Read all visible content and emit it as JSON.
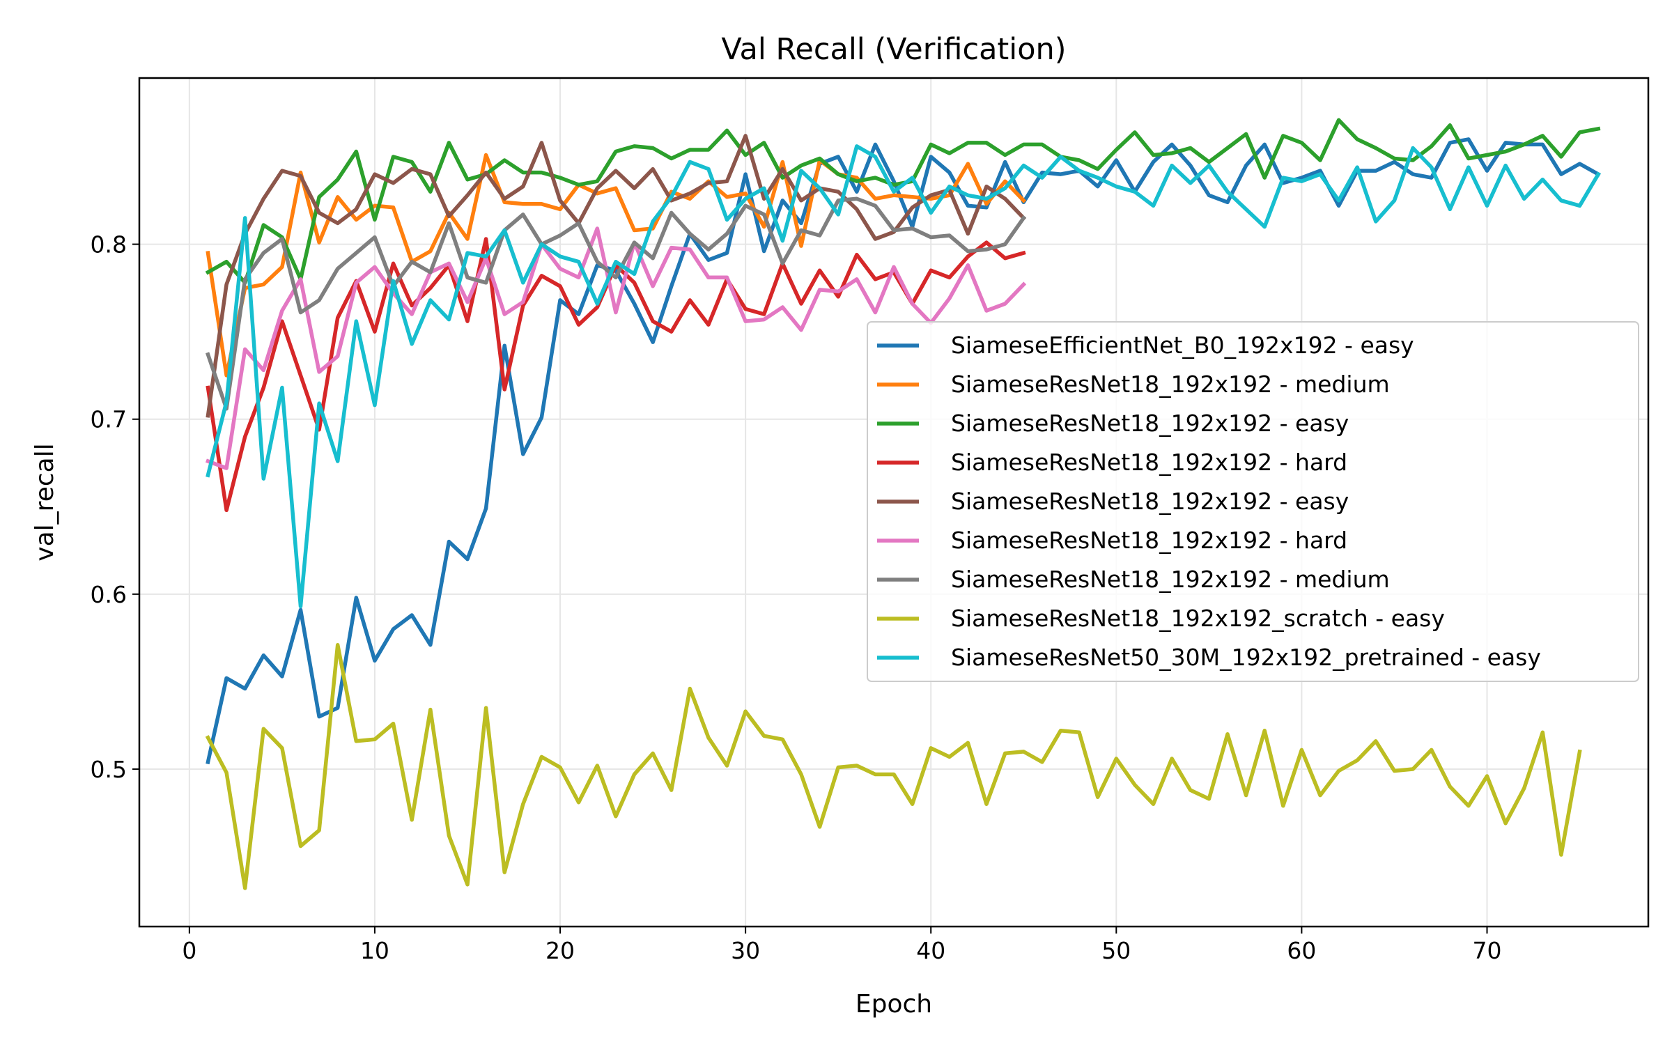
{
  "chart_data": {
    "type": "line",
    "title": "Val Recall (Verification)",
    "xlabel": "Epoch",
    "ylabel": "val_recall",
    "xlim": [
      -2.7,
      78.7
    ],
    "ylim": [
      0.41,
      0.895
    ],
    "xticks": [
      0,
      10,
      20,
      30,
      40,
      50,
      60,
      70
    ],
    "yticks": [
      0.5,
      0.6,
      0.7,
      0.8
    ],
    "grid": true,
    "legend_position": "center-right",
    "series": [
      {
        "name": "SiameseEfficientNet_B0_192x192 - easy",
        "color": "#1f77b4",
        "x_start": 1,
        "values": [
          0.504,
          0.552,
          0.546,
          0.565,
          0.553,
          0.591,
          0.53,
          0.535,
          0.598,
          0.562,
          0.58,
          0.588,
          0.571,
          0.63,
          0.62,
          0.649,
          0.742,
          0.68,
          0.701,
          0.768,
          0.76,
          0.788,
          0.785,
          0.766,
          0.744,
          0.776,
          0.806,
          0.791,
          0.795,
          0.84,
          0.796,
          0.825,
          0.812,
          0.846,
          0.85,
          0.83,
          0.857,
          0.836,
          0.81,
          0.85,
          0.841,
          0.822,
          0.821,
          0.847,
          0.824,
          0.841,
          0.84,
          0.842,
          0.833,
          0.848,
          0.83,
          0.847,
          0.857,
          0.845,
          0.828,
          0.824,
          0.845,
          0.857,
          0.835,
          0.838,
          0.842,
          0.822,
          0.842,
          0.842,
          0.847,
          0.84,
          0.838,
          0.858,
          0.86,
          0.842,
          0.858,
          0.857,
          0.857,
          0.84,
          0.846,
          0.84
        ]
      },
      {
        "name": "SiameseResNet18_192x192 - medium",
        "color": "#ff7f0e",
        "x_start": 1,
        "values": [
          0.795,
          0.725,
          0.775,
          0.777,
          0.787,
          0.841,
          0.801,
          0.827,
          0.814,
          0.822,
          0.821,
          0.79,
          0.796,
          0.818,
          0.803,
          0.851,
          0.824,
          0.823,
          0.823,
          0.82,
          0.834,
          0.829,
          0.832,
          0.808,
          0.809,
          0.83,
          0.826,
          0.836,
          0.827,
          0.829,
          0.81,
          0.847,
          0.799,
          0.848,
          0.84,
          0.838,
          0.826,
          0.828,
          0.827,
          0.826,
          0.828,
          0.846,
          0.823,
          0.836,
          0.825
        ]
      },
      {
        "name": "SiameseResNet18_192x192 - easy",
        "color": "#2ca02c",
        "x_start": 1,
        "values": [
          0.784,
          0.79,
          0.778,
          0.811,
          0.804,
          0.78,
          0.827,
          0.837,
          0.853,
          0.814,
          0.85,
          0.847,
          0.83,
          0.858,
          0.837,
          0.84,
          0.848,
          0.841,
          0.841,
          0.838,
          0.834,
          0.836,
          0.853,
          0.856,
          0.855,
          0.849,
          0.854,
          0.854,
          0.865,
          0.851,
          0.858,
          0.838,
          0.845,
          0.849,
          0.84,
          0.836,
          0.838,
          0.834,
          0.836,
          0.857,
          0.852,
          0.858,
          0.858,
          0.851,
          0.857,
          0.857,
          0.85,
          0.848,
          0.843,
          0.854,
          0.864,
          0.851,
          0.852,
          0.855,
          0.847,
          0.855,
          0.863,
          0.838,
          0.862,
          0.858,
          0.848,
          0.871,
          0.86,
          0.855,
          0.849,
          0.848,
          0.856,
          0.868,
          0.849,
          0.851,
          0.853,
          0.857,
          0.862,
          0.85,
          0.864,
          0.866
        ]
      },
      {
        "name": "SiameseResNet18_192x192 - hard",
        "color": "#d62728",
        "x_start": 1,
        "values": [
          0.718,
          0.648,
          0.69,
          0.718,
          0.756,
          0.725,
          0.694,
          0.758,
          0.779,
          0.75,
          0.789,
          0.765,
          0.775,
          0.788,
          0.756,
          0.803,
          0.717,
          0.765,
          0.782,
          0.776,
          0.754,
          0.764,
          0.788,
          0.778,
          0.756,
          0.75,
          0.768,
          0.754,
          0.78,
          0.763,
          0.76,
          0.789,
          0.766,
          0.785,
          0.77,
          0.794,
          0.78,
          0.784,
          0.766,
          0.785,
          0.781,
          0.793,
          0.801,
          0.792,
          0.795
        ]
      },
      {
        "name": "SiameseResNet18_192x192 - easy",
        "color": "#8c564b",
        "x_start": 1,
        "values": [
          0.702,
          0.777,
          0.806,
          0.826,
          0.842,
          0.839,
          0.818,
          0.812,
          0.82,
          0.84,
          0.835,
          0.843,
          0.84,
          0.816,
          0.828,
          0.841,
          0.826,
          0.833,
          0.858,
          0.825,
          0.812,
          0.832,
          0.842,
          0.832,
          0.843,
          0.825,
          0.829,
          0.835,
          0.836,
          0.862,
          0.826,
          0.843,
          0.825,
          0.832,
          0.83,
          0.82,
          0.803,
          0.807,
          0.821,
          0.828,
          0.831,
          0.806,
          0.833,
          0.826,
          0.815
        ]
      },
      {
        "name": "SiameseResNet18_192x192 - hard",
        "color": "#e377c2",
        "x_start": 1,
        "values": [
          0.676,
          0.672,
          0.74,
          0.728,
          0.762,
          0.78,
          0.727,
          0.736,
          0.778,
          0.787,
          0.772,
          0.76,
          0.784,
          0.789,
          0.767,
          0.792,
          0.76,
          0.767,
          0.8,
          0.786,
          0.781,
          0.809,
          0.761,
          0.801,
          0.776,
          0.798,
          0.797,
          0.781,
          0.781,
          0.756,
          0.757,
          0.764,
          0.751,
          0.774,
          0.773,
          0.78,
          0.761,
          0.787,
          0.766,
          0.755,
          0.769,
          0.788,
          0.762,
          0.766,
          0.777
        ]
      },
      {
        "name": "SiameseResNet18_192x192 - medium",
        "color": "#7f7f7f",
        "x_start": 1,
        "values": [
          0.737,
          0.706,
          0.78,
          0.795,
          0.803,
          0.761,
          0.768,
          0.786,
          0.795,
          0.804,
          0.776,
          0.79,
          0.784,
          0.812,
          0.781,
          0.778,
          0.808,
          0.817,
          0.8,
          0.805,
          0.812,
          0.79,
          0.781,
          0.801,
          0.792,
          0.818,
          0.806,
          0.797,
          0.806,
          0.822,
          0.817,
          0.789,
          0.808,
          0.805,
          0.825,
          0.826,
          0.822,
          0.808,
          0.809,
          0.804,
          0.805,
          0.796,
          0.797,
          0.8,
          0.815
        ]
      },
      {
        "name": "SiameseResNet18_192x192_scratch - easy",
        "color": "#bcbd22",
        "x_start": 1,
        "values": [
          0.518,
          0.498,
          0.432,
          0.523,
          0.512,
          0.456,
          0.465,
          0.571,
          0.516,
          0.517,
          0.526,
          0.471,
          0.534,
          0.462,
          0.434,
          0.535,
          0.441,
          0.48,
          0.507,
          0.501,
          0.481,
          0.502,
          0.473,
          0.497,
          0.509,
          0.488,
          0.546,
          0.518,
          0.502,
          0.533,
          0.519,
          0.517,
          0.497,
          0.467,
          0.501,
          0.502,
          0.497,
          0.497,
          0.48,
          0.512,
          0.507,
          0.515,
          0.48,
          0.509,
          0.51,
          0.504,
          0.522,
          0.521,
          0.484,
          0.506,
          0.491,
          0.48,
          0.506,
          0.488,
          0.483,
          0.52,
          0.485,
          0.522,
          0.479,
          0.511,
          0.485,
          0.499,
          0.505,
          0.516,
          0.499,
          0.5,
          0.511,
          0.49,
          0.479,
          0.496,
          0.469,
          0.489,
          0.521,
          0.451,
          0.51
        ]
      },
      {
        "name": "SiameseResNet50_30M_192x192_pretrained - easy",
        "color": "#17becf",
        "x_start": 1,
        "values": [
          0.668,
          0.71,
          0.815,
          0.666,
          0.718,
          0.593,
          0.709,
          0.676,
          0.756,
          0.708,
          0.779,
          0.743,
          0.768,
          0.757,
          0.795,
          0.793,
          0.808,
          0.778,
          0.8,
          0.793,
          0.79,
          0.766,
          0.79,
          0.783,
          0.813,
          0.827,
          0.847,
          0.843,
          0.814,
          0.826,
          0.832,
          0.802,
          0.842,
          0.832,
          0.817,
          0.856,
          0.85,
          0.83,
          0.838,
          0.818,
          0.833,
          0.828,
          0.826,
          0.832,
          0.845,
          0.838,
          0.85,
          0.842,
          0.838,
          0.833,
          0.83,
          0.822,
          0.845,
          0.835,
          0.845,
          0.83,
          0.82,
          0.81,
          0.838,
          0.836,
          0.84,
          0.825,
          0.844,
          0.813,
          0.825,
          0.855,
          0.844,
          0.82,
          0.844,
          0.822,
          0.845,
          0.826,
          0.837,
          0.825,
          0.822,
          0.84
        ]
      }
    ]
  }
}
